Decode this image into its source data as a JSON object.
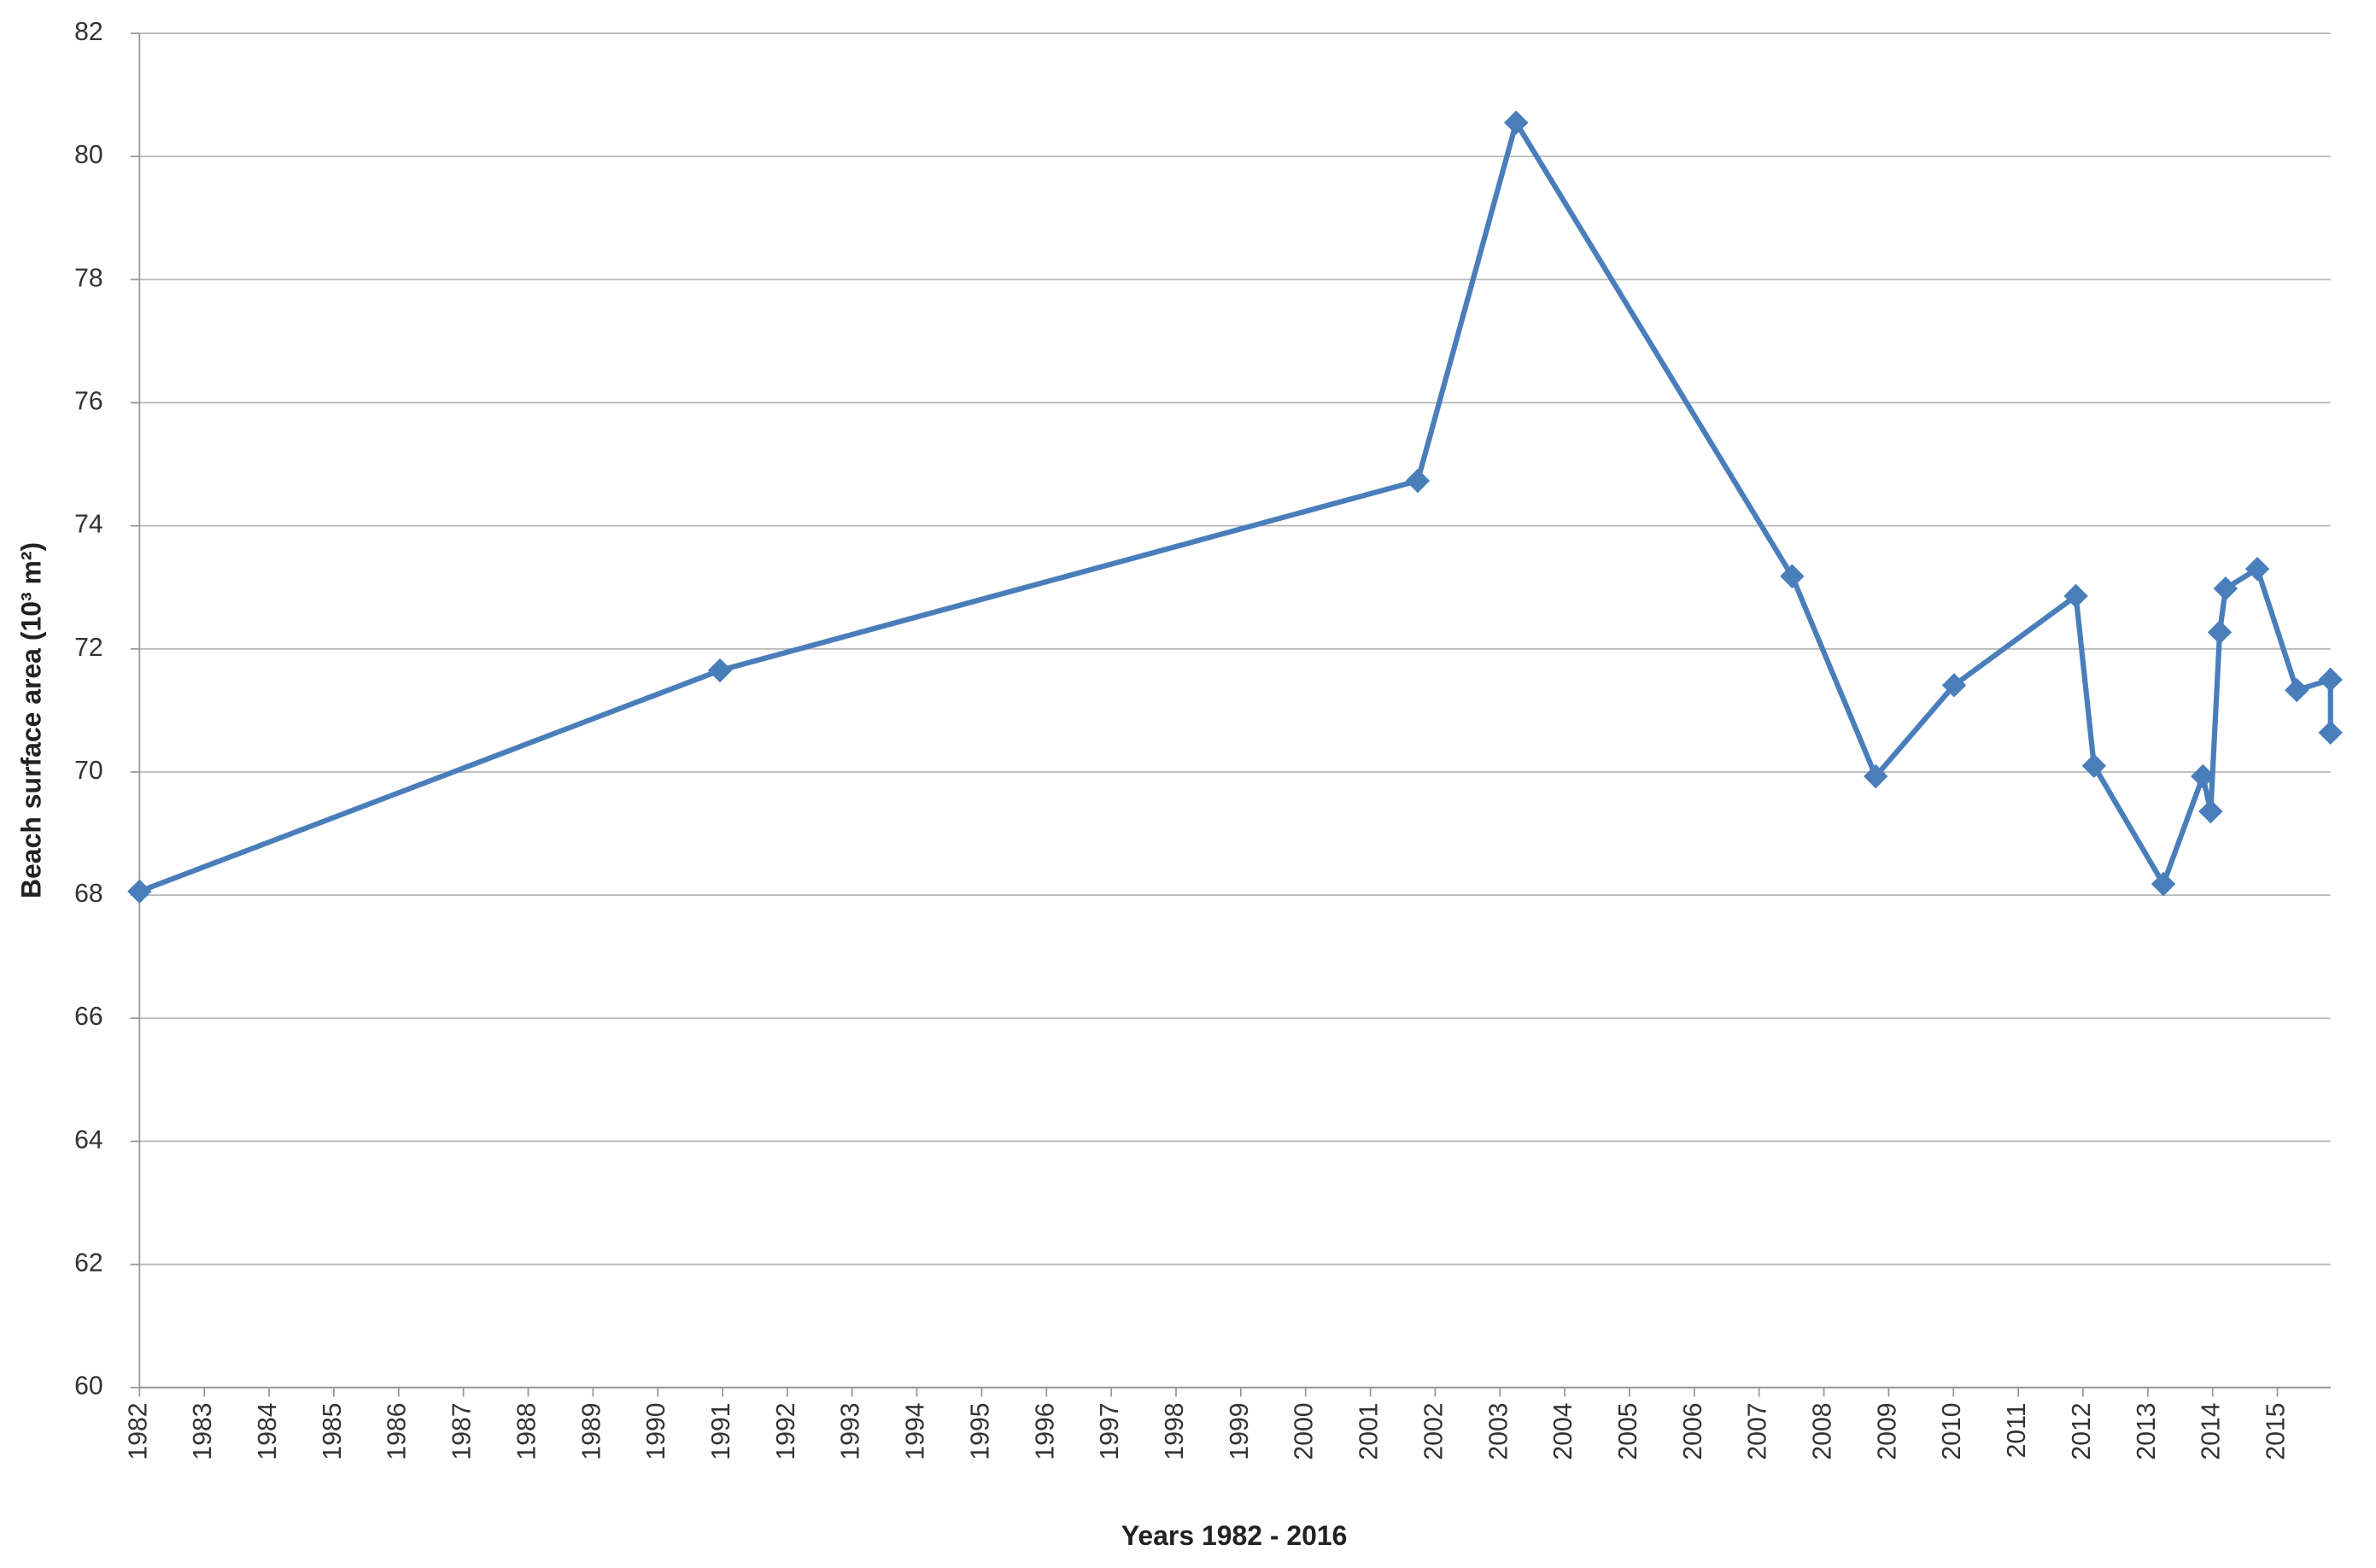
{
  "chart_data": {
    "type": "line",
    "xlabel": "Years 1982 - 2016",
    "ylabel": "Beach surface area (10³ m²)",
    "x": [
      1982.0,
      1990.96,
      2001.73,
      2003.25,
      2007.51,
      2008.8,
      2010.01,
      2011.89,
      2012.17,
      2013.24,
      2013.85,
      2013.97,
      2014.11,
      2014.2,
      2014.69,
      2015.3,
      2015.82,
      2015.82
    ],
    "series": [
      {
        "color": "#4a7ebb",
        "values": [
          68.06,
          71.65,
          74.73,
          80.55,
          73.18,
          69.93,
          71.41,
          72.86,
          70.1,
          68.18,
          69.93,
          69.36,
          72.27,
          72.98,
          73.3,
          71.33,
          71.5,
          70.64
        ]
      }
    ],
    "xlim": [
      1982,
      2015.82
    ],
    "xticks": [
      1982,
      1983,
      1984,
      1985,
      1986,
      1987,
      1988,
      1989,
      1990,
      1991,
      1992,
      1993,
      1994,
      1995,
      1996,
      1997,
      1998,
      1999,
      2000,
      2001,
      2002,
      2003,
      2004,
      2005,
      2006,
      2007,
      2008,
      2009,
      2010,
      2011,
      2012,
      2013,
      2014,
      2015
    ],
    "ylim": [
      60,
      82
    ],
    "yticks": [
      60,
      62,
      64,
      66,
      68,
      70,
      72,
      74,
      76,
      78,
      80,
      82
    ],
    "grid": true
  }
}
